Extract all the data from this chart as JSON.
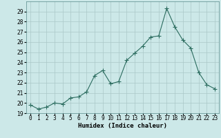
{
  "x": [
    0,
    1,
    2,
    3,
    4,
    5,
    6,
    7,
    8,
    9,
    10,
    11,
    12,
    13,
    14,
    15,
    16,
    17,
    18,
    19,
    20,
    21,
    22,
    23
  ],
  "y": [
    19.8,
    19.4,
    19.6,
    20.0,
    19.9,
    20.5,
    20.6,
    21.1,
    22.7,
    23.2,
    21.9,
    22.1,
    24.2,
    24.9,
    25.6,
    26.5,
    26.6,
    29.3,
    27.5,
    26.2,
    25.4,
    23.0,
    21.8,
    21.4
  ],
  "line_color": "#2a6b5e",
  "marker": "+",
  "marker_size": 4,
  "bg_color": "#cce8e8",
  "grid_color": "#aac8c8",
  "xlabel": "Humidex (Indice chaleur)",
  "xlim": [
    -0.5,
    23.5
  ],
  "ylim": [
    19,
    30
  ],
  "yticks": [
    19,
    20,
    21,
    22,
    23,
    24,
    25,
    26,
    27,
    28,
    29
  ],
  "xticks": [
    0,
    1,
    2,
    3,
    4,
    5,
    6,
    7,
    8,
    9,
    10,
    11,
    12,
    13,
    14,
    15,
    16,
    17,
    18,
    19,
    20,
    21,
    22,
    23
  ],
  "label_fontsize": 6.5,
  "tick_fontsize": 5.5
}
